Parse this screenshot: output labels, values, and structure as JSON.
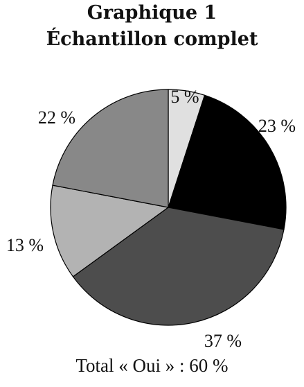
{
  "chart_data": {
    "type": "pie",
    "title": "Graphique 1",
    "subtitle": "Échantillon complet",
    "slices": [
      {
        "label": "5 %",
        "value": 5,
        "color": "#e0e0e0"
      },
      {
        "label": "23 %",
        "value": 23,
        "color": "#000000"
      },
      {
        "label": "37 %",
        "value": 37,
        "color": "#4d4d4d"
      },
      {
        "label": "13 %",
        "value": 13,
        "color": "#b3b3b3"
      },
      {
        "label": "22 %",
        "value": 22,
        "color": "#888888"
      }
    ],
    "start_angle": "top",
    "direction": "clockwise",
    "footer": "Total « Oui » : 60 %"
  }
}
